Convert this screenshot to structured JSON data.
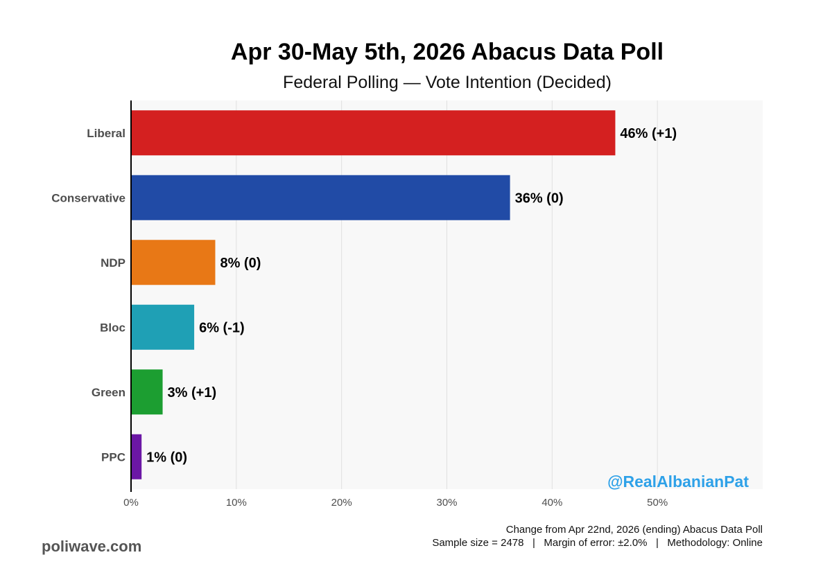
{
  "header": {
    "title": "Apr 30-May 5th, 2026 Abacus Data Poll",
    "subtitle": "Federal Polling — Vote Intention (Decided)"
  },
  "watermark": "@RealAlbanianPat",
  "footer": {
    "change_note": "Change from Apr 22nd, 2026 (ending) Abacus Data Poll",
    "sample_line": "Sample size = 2478   |   Margin of error: ±2.0%   |   Methodology: Online",
    "brand": "poliwave.com"
  },
  "colors": {
    "Liberal": "#d42020",
    "Conservative": "#214ba6",
    "NDP": "#e87816",
    "Bloc": "#1fa0b5",
    "Green": "#1c9e31",
    "PPC": "#6b17a5",
    "panel_background": "#f8f8f8",
    "gridline": "#e0e0e0"
  },
  "chart_data": {
    "type": "bar",
    "orientation": "horizontal",
    "title": "Apr 30-May 5th, 2026 Abacus Data Poll",
    "subtitle": "Federal Polling — Vote Intention (Decided)",
    "categories": [
      "Liberal",
      "Conservative",
      "NDP",
      "Bloc",
      "Green",
      "PPC"
    ],
    "values": [
      46,
      36,
      8,
      6,
      3,
      1
    ],
    "changes": [
      "+1",
      "0",
      "0",
      "-1",
      "+1",
      "0"
    ],
    "data_labels": [
      "46% (+1)",
      "36% (0)",
      "8% (0)",
      "6% (-1)",
      "3% (+1)",
      "1% (0)"
    ],
    "xlim": [
      0,
      60
    ],
    "x_ticks": [
      0,
      10,
      20,
      30,
      40,
      50
    ],
    "x_tick_labels": [
      "0%",
      "10%",
      "20%",
      "30%",
      "40%",
      "50%"
    ],
    "xlabel": "",
    "ylabel": "",
    "grid": true,
    "legend": "none"
  }
}
